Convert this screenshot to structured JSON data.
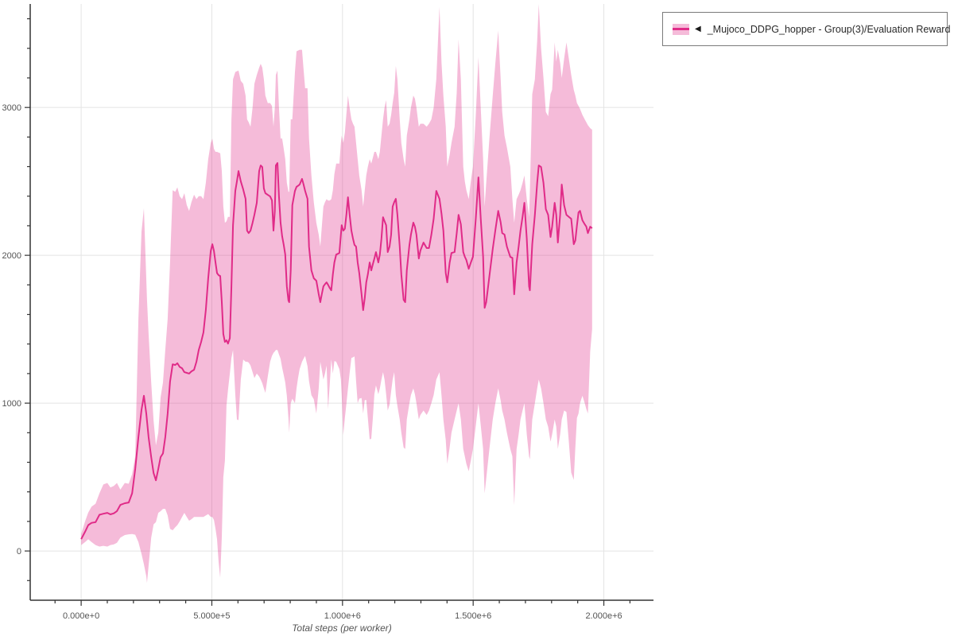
{
  "legend": {
    "marker": "◀",
    "label": "_Mujoco_DDPG_hopper - Group(3)/Evaluation Reward"
  },
  "colors": {
    "line": "#e02b88",
    "band": "rgba(224,43,136,0.32)",
    "grid": "#e4e4e4",
    "axis": "#333333",
    "tick_label": "#545454",
    "axis_title": "#555555",
    "legend_border": "#7a7a7a",
    "background": "#ffffff"
  },
  "chart_data": {
    "type": "line",
    "title": "",
    "xlabel": "Total steps (per worker)",
    "ylabel": "",
    "series_name": "_Mujoco_DDPG_hopper - Group(3)/Evaluation Reward",
    "legend_position": "top-right-outside",
    "grid": "major-only",
    "band": "shaded min/max range around mean",
    "xlim": [
      -195000,
      2190000
    ],
    "ylim": [
      -333,
      3700
    ],
    "x_ticks_major": {
      "values": [
        0,
        500000,
        1000000,
        1500000,
        2000000
      ],
      "labels": [
        "0.000e+0",
        "5.000e+5",
        "1.000e+6",
        "1.500e+6",
        "2.000e+6"
      ]
    },
    "x_ticks_minor_step": 100000,
    "y_ticks_major": {
      "values": [
        0,
        1000,
        2000,
        3000
      ],
      "labels": [
        "0",
        "1000",
        "2000",
        "3000"
      ]
    },
    "y_ticks_minor_step": 200,
    "points_format": [
      "steps_thousands",
      "mean",
      "lower",
      "upper"
    ],
    "points": [
      [
        0,
        80,
        40,
        115
      ],
      [
        15,
        130,
        60,
        200
      ],
      [
        27,
        175,
        80,
        260
      ],
      [
        40,
        190,
        60,
        300
      ],
      [
        55,
        195,
        40,
        320
      ],
      [
        70,
        245,
        30,
        390
      ],
      [
        85,
        252,
        35,
        450
      ],
      [
        100,
        258,
        30,
        460
      ],
      [
        112,
        248,
        40,
        430
      ],
      [
        125,
        255,
        45,
        440
      ],
      [
        137,
        270,
        55,
        460
      ],
      [
        150,
        312,
        90,
        415
      ],
      [
        167,
        323,
        108,
        460
      ],
      [
        182,
        328,
        113,
        455
      ],
      [
        195,
        390,
        115,
        520
      ],
      [
        207,
        555,
        110,
        640
      ],
      [
        219,
        770,
        60,
        1570
      ],
      [
        231,
        955,
        -20,
        2160
      ],
      [
        240,
        1050,
        -90,
        2318
      ],
      [
        249,
        930,
        -170,
        1840
      ],
      [
        252,
        880,
        -215,
        1700
      ],
      [
        258,
        770,
        -100,
        1470
      ],
      [
        268,
        635,
        90,
        1140
      ],
      [
        277,
        527,
        180,
        880
      ],
      [
        286,
        478,
        195,
        715
      ],
      [
        295,
        555,
        258,
        800
      ],
      [
        304,
        635,
        269,
        1040
      ],
      [
        313,
        660,
        285,
        1140
      ],
      [
        322,
        770,
        285,
        1360
      ],
      [
        331,
        930,
        240,
        1570
      ],
      [
        340,
        1145,
        150,
        1950
      ],
      [
        350,
        1263,
        140,
        2440
      ],
      [
        360,
        1258,
        160,
        2430
      ],
      [
        368,
        1270,
        175,
        2460
      ],
      [
        377,
        1245,
        200,
        2400
      ],
      [
        386,
        1236,
        230,
        2380
      ],
      [
        395,
        1210,
        258,
        2420
      ],
      [
        404,
        1205,
        230,
        2340
      ],
      [
        413,
        1200,
        205,
        2300
      ],
      [
        422,
        1215,
        215,
        2360
      ],
      [
        432,
        1226,
        230,
        2410
      ],
      [
        441,
        1280,
        230,
        2380
      ],
      [
        450,
        1360,
        230,
        2400
      ],
      [
        459,
        1414,
        230,
        2400
      ],
      [
        468,
        1478,
        230,
        2380
      ],
      [
        477,
        1630,
        240,
        2490
      ],
      [
        486,
        1845,
        250,
        2650
      ],
      [
        496,
        2030,
        230,
        2760
      ],
      [
        502,
        2075,
        230,
        2790
      ],
      [
        508,
        2030,
        210,
        2720
      ],
      [
        514,
        1950,
        150,
        2700
      ],
      [
        520,
        1880,
        80,
        2700
      ],
      [
        526,
        1865,
        -75,
        2695
      ],
      [
        532,
        1860,
        -180,
        2690
      ],
      [
        538,
        1683,
        95,
        2570
      ],
      [
        544,
        1468,
        500,
        2330
      ],
      [
        550,
        1414,
        610,
        2220
      ],
      [
        556,
        1425,
        985,
        2230
      ],
      [
        562,
        1403,
        1090,
        2260
      ],
      [
        569,
        1440,
        1200,
        2260
      ],
      [
        575,
        1790,
        1305,
        2920
      ],
      [
        581,
        2204,
        1360,
        3190
      ],
      [
        590,
        2436,
        1055,
        3240
      ],
      [
        596,
        2500,
        890,
        3245
      ],
      [
        602,
        2570,
        885,
        3250
      ],
      [
        611,
        2500,
        1160,
        3180
      ],
      [
        620,
        2446,
        1295,
        3160
      ],
      [
        629,
        2382,
        1280,
        3080
      ],
      [
        635,
        2167,
        1280,
        2920
      ],
      [
        641,
        2150,
        1275,
        2900
      ],
      [
        648,
        2167,
        1255,
        2870
      ],
      [
        656,
        2220,
        1210,
        3000
      ],
      [
        663,
        2274,
        1170,
        3160
      ],
      [
        672,
        2355,
        1200,
        3220
      ],
      [
        681,
        2570,
        1180,
        3270
      ],
      [
        687,
        2608,
        1160,
        3295
      ],
      [
        693,
        2597,
        1135,
        3270
      ],
      [
        699,
        2452,
        1100,
        3190
      ],
      [
        705,
        2420,
        1070,
        3080
      ],
      [
        714,
        2409,
        1180,
        3030
      ],
      [
        723,
        2398,
        1280,
        3030
      ],
      [
        730,
        2371,
        1320,
        3010
      ],
      [
        736,
        2167,
        1340,
        2870
      ],
      [
        741,
        2300,
        1350,
        3000
      ],
      [
        745,
        2608,
        1360,
        3220
      ],
      [
        751,
        2624,
        1360,
        3250
      ],
      [
        757,
        2400,
        1330,
        3000
      ],
      [
        763,
        2221,
        1300,
        2790
      ],
      [
        769,
        2129,
        1240,
        2790
      ],
      [
        775,
        2070,
        1190,
        2720
      ],
      [
        781,
        2005,
        1140,
        2650
      ],
      [
        787,
        1790,
        1050,
        2490
      ],
      [
        793,
        1695,
        900,
        2430
      ],
      [
        796,
        1683,
        800,
        2430
      ],
      [
        802,
        1898,
        1000,
        2920
      ],
      [
        808,
        2339,
        1030,
        2920
      ],
      [
        818,
        2436,
        1000,
        3240
      ],
      [
        824,
        2463,
        1100,
        3380
      ],
      [
        830,
        2470,
        1170,
        3385
      ],
      [
        836,
        2479,
        1230,
        3390
      ],
      [
        845,
        2517,
        1280,
        3390
      ],
      [
        851,
        2480,
        1300,
        3260
      ],
      [
        857,
        2436,
        1320,
        3130
      ],
      [
        866,
        2382,
        1250,
        3130
      ],
      [
        872,
        2059,
        1150,
        2790
      ],
      [
        881,
        1898,
        1054,
        2540
      ],
      [
        890,
        1845,
        1027,
        2360
      ],
      [
        900,
        1828,
        930,
        2220
      ],
      [
        909,
        1737,
        1100,
        2140
      ],
      [
        915,
        1683,
        1280,
        2060
      ],
      [
        921,
        1740,
        1220,
        2200
      ],
      [
        927,
        1790,
        1160,
        2330
      ],
      [
        933,
        1805,
        1200,
        2360
      ],
      [
        939,
        1817,
        1255,
        2380
      ],
      [
        945,
        1800,
        960,
        2370
      ],
      [
        951,
        1780,
        1120,
        2370
      ],
      [
        957,
        1763,
        1295,
        2380
      ],
      [
        963,
        1871,
        1200,
        2440
      ],
      [
        969,
        1952,
        1285,
        2550
      ],
      [
        976,
        2005,
        1280,
        2620
      ],
      [
        982,
        2010,
        1255,
        2620
      ],
      [
        988,
        2016,
        1230,
        2620
      ],
      [
        994,
        2140,
        1160,
        2760
      ],
      [
        997,
        2204,
        1055,
        2810
      ],
      [
        1003,
        2167,
        785,
        2760
      ],
      [
        1009,
        2180,
        900,
        2830
      ],
      [
        1015,
        2280,
        1000,
        2960
      ],
      [
        1021,
        2393,
        1100,
        3080
      ],
      [
        1027,
        2280,
        1200,
        3000
      ],
      [
        1034,
        2167,
        1306,
        2920
      ],
      [
        1040,
        2113,
        1310,
        2890
      ],
      [
        1046,
        2070,
        1317,
        2870
      ],
      [
        1052,
        2059,
        1150,
        2760
      ],
      [
        1058,
        1952,
        1000,
        2650
      ],
      [
        1064,
        1880,
        1030,
        2540
      ],
      [
        1073,
        1737,
        1035,
        2440
      ],
      [
        1079,
        1629,
        930,
        2330
      ],
      [
        1085,
        1710,
        1020,
        2440
      ],
      [
        1091,
        1817,
        1022,
        2540
      ],
      [
        1097,
        1871,
        900,
        2600
      ],
      [
        1104,
        1952,
        755,
        2650
      ],
      [
        1110,
        1898,
        760,
        2620
      ],
      [
        1116,
        1940,
        900,
        2660
      ],
      [
        1122,
        1978,
        1060,
        2700
      ],
      [
        1128,
        2022,
        1120,
        2700
      ],
      [
        1137,
        1952,
        1060,
        2650
      ],
      [
        1143,
        2005,
        1100,
        2700
      ],
      [
        1149,
        2113,
        1160,
        2810
      ],
      [
        1155,
        2258,
        1210,
        2920
      ],
      [
        1161,
        2231,
        1160,
        3000
      ],
      [
        1167,
        2204,
        1060,
        3050
      ],
      [
        1173,
        2022,
        950,
        2870
      ],
      [
        1180,
        2059,
        990,
        2890
      ],
      [
        1186,
        2140,
        1080,
        2950
      ],
      [
        1192,
        2330,
        1160,
        3030
      ],
      [
        1198,
        2360,
        1210,
        3100
      ],
      [
        1204,
        2382,
        1055,
        3280
      ],
      [
        1210,
        2274,
        980,
        3190
      ],
      [
        1219,
        2059,
        890,
        2920
      ],
      [
        1225,
        1871,
        800,
        2760
      ],
      [
        1234,
        1699,
        700,
        2650
      ],
      [
        1240,
        1683,
        690,
        2600
      ],
      [
        1246,
        1898,
        890,
        2810
      ],
      [
        1256,
        2070,
        1000,
        2920
      ],
      [
        1262,
        2140,
        1055,
        3000
      ],
      [
        1271,
        2221,
        1100,
        3080
      ],
      [
        1277,
        2194,
        1060,
        3060
      ],
      [
        1283,
        2140,
        1000,
        3000
      ],
      [
        1292,
        1978,
        890,
        2870
      ],
      [
        1298,
        2032,
        920,
        2890
      ],
      [
        1310,
        2086,
        950,
        2890
      ],
      [
        1322,
        2049,
        920,
        2870
      ],
      [
        1331,
        2049,
        950,
        2890
      ],
      [
        1340,
        2140,
        1000,
        2920
      ],
      [
        1349,
        2247,
        1055,
        3000
      ],
      [
        1359,
        2436,
        1160,
        3190
      ],
      [
        1371,
        2382,
        1210,
        3680
      ],
      [
        1379,
        2280,
        1050,
        3300
      ],
      [
        1386,
        2167,
        890,
        3080
      ],
      [
        1395,
        1880,
        750,
        2870
      ],
      [
        1401,
        1817,
        590,
        2600
      ],
      [
        1410,
        1950,
        700,
        2680
      ],
      [
        1417,
        2016,
        800,
        2760
      ],
      [
        1429,
        2022,
        890,
        2870
      ],
      [
        1437,
        2150,
        950,
        3100
      ],
      [
        1444,
        2274,
        1000,
        3460
      ],
      [
        1453,
        2210,
        890,
        3190
      ],
      [
        1462,
        2022,
        690,
        2600
      ],
      [
        1468,
        1990,
        640,
        2500
      ],
      [
        1474,
        1968,
        590,
        2440
      ],
      [
        1483,
        1909,
        540,
        2380
      ],
      [
        1491,
        1950,
        610,
        2500
      ],
      [
        1499,
        1990,
        690,
        2600
      ],
      [
        1510,
        2250,
        850,
        2950
      ],
      [
        1520,
        2527,
        1000,
        3340
      ],
      [
        1529,
        2250,
        850,
        3000
      ],
      [
        1538,
        1990,
        690,
        2650
      ],
      [
        1544,
        1645,
        390,
        2330
      ],
      [
        1550,
        1683,
        490,
        2490
      ],
      [
        1562,
        1860,
        690,
        2790
      ],
      [
        1575,
        2043,
        890,
        3080
      ],
      [
        1585,
        2170,
        1000,
        3300
      ],
      [
        1596,
        2301,
        1100,
        3520
      ],
      [
        1605,
        2225,
        1020,
        3200
      ],
      [
        1611,
        2150,
        950,
        2970
      ],
      [
        1620,
        2140,
        890,
        2810
      ],
      [
        1629,
        2059,
        800,
        2730
      ],
      [
        1642,
        1989,
        690,
        2600
      ],
      [
        1650,
        1983,
        640,
        2380
      ],
      [
        1657,
        1736,
        310,
        2220
      ],
      [
        1666,
        1952,
        690,
        2380
      ],
      [
        1674,
        2060,
        790,
        2410
      ],
      [
        1681,
        2167,
        890,
        2440
      ],
      [
        1689,
        2260,
        950,
        2490
      ],
      [
        1696,
        2355,
        1000,
        2540
      ],
      [
        1705,
        2113,
        790,
        2380
      ],
      [
        1714,
        1790,
        640,
        2260
      ],
      [
        1717,
        1763,
        620,
        2430
      ],
      [
        1726,
        2075,
        890,
        3090
      ],
      [
        1736,
        2274,
        1000,
        3190
      ],
      [
        1745,
        2490,
        1100,
        3450
      ],
      [
        1751,
        2608,
        1160,
        3700
      ],
      [
        1760,
        2597,
        1100,
        3400
      ],
      [
        1769,
        2490,
        1000,
        3200
      ],
      [
        1778,
        2312,
        890,
        2970
      ],
      [
        1787,
        2274,
        840,
        2940
      ],
      [
        1796,
        2124,
        740,
        3090
      ],
      [
        1802,
        2194,
        790,
        3120
      ],
      [
        1812,
        2355,
        890,
        3440
      ],
      [
        1818,
        2274,
        840,
        3310
      ],
      [
        1824,
        2086,
        690,
        3390
      ],
      [
        1833,
        2274,
        790,
        3300
      ],
      [
        1839,
        2479,
        890,
        3200
      ],
      [
        1848,
        2339,
        950,
        3330
      ],
      [
        1857,
        2274,
        940,
        3440
      ],
      [
        1866,
        2260,
        740,
        3330
      ],
      [
        1875,
        2247,
        530,
        3220
      ],
      [
        1885,
        2075,
        480,
        3120
      ],
      [
        1891,
        2100,
        700,
        3080
      ],
      [
        1897,
        2200,
        900,
        3030
      ],
      [
        1903,
        2290,
        930,
        3010
      ],
      [
        1909,
        2301,
        1000,
        2990
      ],
      [
        1918,
        2237,
        1050,
        2950
      ],
      [
        1927,
        2210,
        1000,
        2920
      ],
      [
        1933,
        2194,
        960,
        2900
      ],
      [
        1939,
        2150,
        930,
        2880
      ],
      [
        1948,
        2194,
        1350,
        2860
      ],
      [
        1955,
        2183,
        1500,
        2850
      ]
    ]
  }
}
